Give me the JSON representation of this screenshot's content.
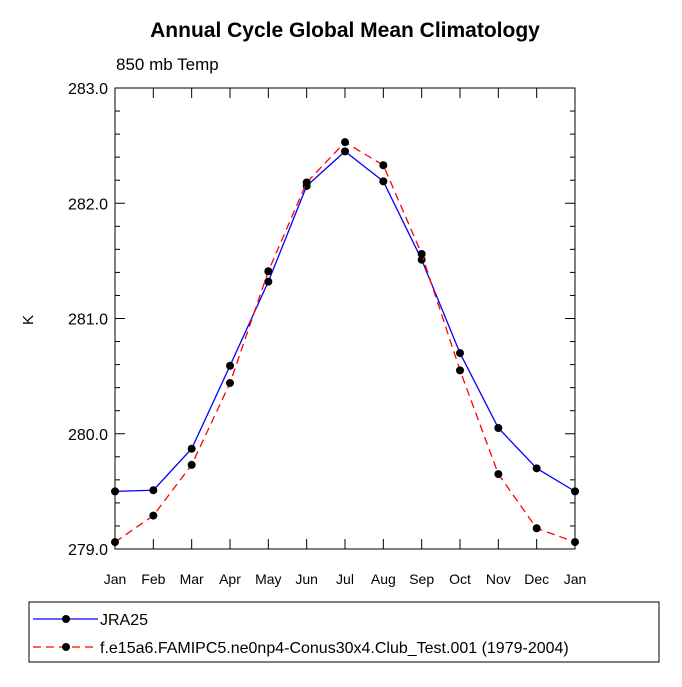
{
  "chart_data": {
    "type": "line",
    "title": "Annual Cycle Global Mean Climatology",
    "subtitle": "850 mb Temp",
    "ylabel": "K",
    "xlabel": "",
    "categories": [
      "Jan",
      "Feb",
      "Mar",
      "Apr",
      "May",
      "Jun",
      "Jul",
      "Aug",
      "Sep",
      "Oct",
      "Nov",
      "Dec",
      "Jan"
    ],
    "ylim": [
      279.0,
      283.0
    ],
    "yticks": [
      "279.0",
      "280.0",
      "281.0",
      "282.0",
      "283.0"
    ],
    "grid": false,
    "legend_position": "bottom",
    "series": [
      {
        "name": "JRA25",
        "color": "#0000ff",
        "dash": "solid",
        "marker": "circle",
        "values": [
          279.5,
          279.51,
          279.87,
          280.59,
          281.32,
          282.15,
          282.45,
          282.19,
          281.51,
          280.7,
          280.05,
          279.7,
          279.5
        ]
      },
      {
        "name": "f.e15a6.FAMIPC5.ne0np4-Conus30x4.Club_Test.001 (1979-2004)",
        "color": "#ff0000",
        "dash": "dashed",
        "marker": "circle",
        "values": [
          279.06,
          279.29,
          279.73,
          280.44,
          281.41,
          282.18,
          282.53,
          282.33,
          281.56,
          280.55,
          279.65,
          279.18,
          279.06
        ]
      }
    ]
  }
}
